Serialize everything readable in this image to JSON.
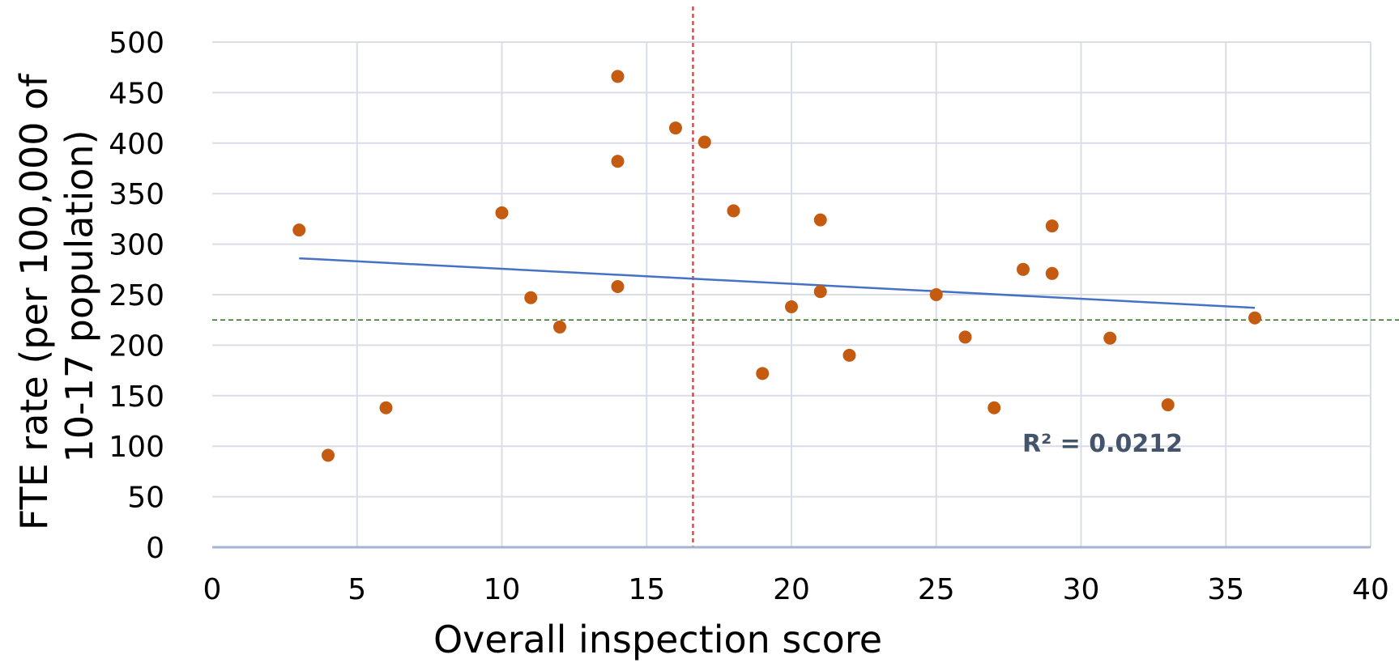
{
  "chart_data": {
    "type": "scatter",
    "title": "",
    "xlabel": "Overall inspection score",
    "ylabel_lines": [
      "FTE rate (per 100,000 of",
      "10-17 population)"
    ],
    "xlim": [
      0,
      40
    ],
    "ylim": [
      0,
      500
    ],
    "x_ticks": [
      0,
      5,
      10,
      15,
      20,
      25,
      30,
      35,
      40
    ],
    "y_ticks": [
      0,
      50,
      100,
      150,
      200,
      250,
      300,
      350,
      400,
      450,
      500
    ],
    "grid": true,
    "series": [
      {
        "points": [
          {
            "x": 3,
            "y": 314
          },
          {
            "x": 4,
            "y": 91
          },
          {
            "x": 6,
            "y": 138
          },
          {
            "x": 10,
            "y": 331
          },
          {
            "x": 11,
            "y": 247
          },
          {
            "x": 12,
            "y": 218
          },
          {
            "x": 14,
            "y": 466
          },
          {
            "x": 14,
            "y": 382
          },
          {
            "x": 14,
            "y": 258
          },
          {
            "x": 16,
            "y": 415
          },
          {
            "x": 17,
            "y": 401
          },
          {
            "x": 18,
            "y": 333
          },
          {
            "x": 19,
            "y": 172
          },
          {
            "x": 20,
            "y": 238
          },
          {
            "x": 21,
            "y": 324
          },
          {
            "x": 21,
            "y": 253
          },
          {
            "x": 22,
            "y": 190
          },
          {
            "x": 25,
            "y": 250
          },
          {
            "x": 26,
            "y": 208
          },
          {
            "x": 27,
            "y": 138
          },
          {
            "x": 28,
            "y": 275
          },
          {
            "x": 29,
            "y": 318
          },
          {
            "x": 29,
            "y": 271
          },
          {
            "x": 31,
            "y": 207
          },
          {
            "x": 33,
            "y": 141
          },
          {
            "x": 36,
            "y": 227
          }
        ],
        "color": "#c55a11"
      }
    ],
    "trendline": {
      "x1": 3,
      "y1": 286,
      "x2": 36,
      "y2": 237,
      "color": "#4472c4"
    },
    "r_squared_label": "R² = 0.0212",
    "reference_lines": [
      {
        "orientation": "vertical",
        "value": 16.6,
        "color": "#e02020"
      },
      {
        "orientation": "horizontal",
        "value": 225,
        "color": "#2e6b1f"
      }
    ],
    "colors": {
      "grid": "#d9dde5",
      "axis": "#a6b4d0"
    }
  }
}
